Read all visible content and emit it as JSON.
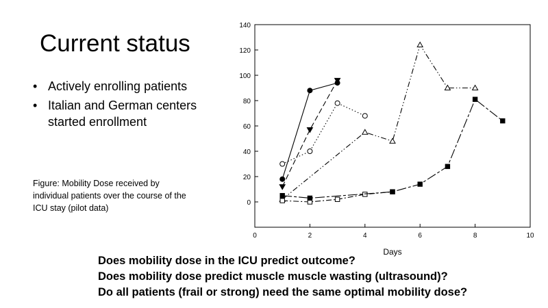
{
  "slide": {
    "title": "Current status",
    "bullets": [
      "Actively enrolling patients",
      "Italian and German centers started enrollment"
    ],
    "bullet_symbol": "•",
    "caption": "Figure: Mobility Dose received by individual patients over the course of the ICU stay (pilot data)",
    "questions": [
      "Does mobility dose in the ICU predict outcome?",
      "Does mobility dose predict muscle muscle wasting (ultrasound)?",
      "Do all patients (frail or strong) need the same optimal mobility dose?"
    ]
  },
  "chart_data": {
    "type": "line",
    "title": "",
    "xlabel": "Days",
    "ylabel": "",
    "xlim": [
      0,
      10
    ],
    "ylim": [
      -20,
      140
    ],
    "xticks": [
      0,
      2,
      4,
      6,
      8,
      10
    ],
    "yticks": [
      0,
      20,
      40,
      60,
      80,
      100,
      120,
      140
    ],
    "grid": false,
    "series": [
      {
        "name": "filled circle",
        "marker": "circle-filled",
        "line": "solid",
        "x": [
          1,
          2,
          3
        ],
        "y": [
          18,
          88,
          94
        ]
      },
      {
        "name": "filled triangle down",
        "marker": "triangle-down-filled",
        "line": "dash",
        "x": [
          1,
          2,
          3
        ],
        "y": [
          12,
          57,
          96
        ]
      },
      {
        "name": "open circle",
        "marker": "circle-open",
        "line": "dot",
        "x": [
          1,
          2,
          3,
          4
        ],
        "y": [
          30,
          40,
          78,
          68
        ]
      },
      {
        "name": "open triangle",
        "marker": "triangle-up-open",
        "line": "dashdotdot",
        "x": [
          1,
          4,
          5,
          6,
          7,
          8
        ],
        "y": [
          2,
          55,
          48,
          124,
          90,
          90
        ]
      },
      {
        "name": "open square",
        "marker": "square-open",
        "line": "dashdot",
        "x": [
          1,
          2,
          3,
          4,
          5
        ],
        "y": [
          1,
          0,
          2,
          6,
          8
        ]
      },
      {
        "name": "filled square",
        "marker": "square-filled",
        "line": "longdash",
        "x": [
          1,
          2,
          5,
          6,
          7,
          8,
          9
        ],
        "y": [
          5,
          3,
          8,
          14,
          28,
          81,
          64
        ]
      }
    ]
  }
}
